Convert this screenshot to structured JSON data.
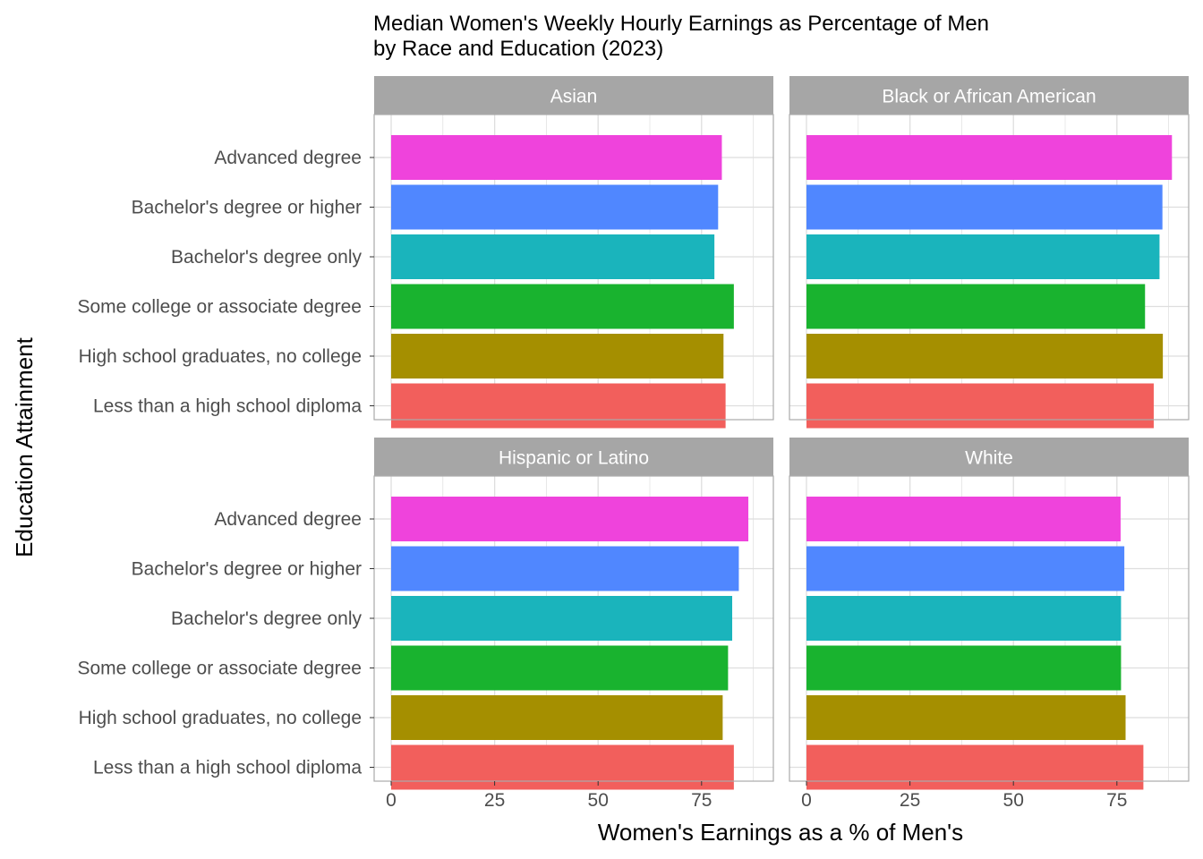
{
  "chart_data": {
    "type": "bar",
    "orientation": "horizontal",
    "title": "Median Women's Weekly Hourly Earnings as Percentage of Men",
    "subtitle": "by Race and Education (2023)",
    "xlabel": "Women's Earnings as a % of Men's",
    "ylabel": "Education Attainment",
    "xlim": [
      0,
      89
    ],
    "xticks": [
      "0",
      "25",
      "50",
      "75"
    ],
    "xtick_values": [
      0,
      25,
      50,
      75
    ],
    "grid": true,
    "categories": [
      "Advanced degree",
      "Bachelor's degree or higher",
      "Bachelor's degree only",
      "Some college or associate degree",
      "High school graduates, no college",
      "Less than a high school diploma"
    ],
    "colors": [
      "#EF43DC",
      "#5087FF",
      "#1AB4BC",
      "#19B32F",
      "#A58F00",
      "#F25F5C"
    ],
    "panels": [
      {
        "name": "Asian",
        "values": [
          79.9,
          79.0,
          78.1,
          82.8,
          80.3,
          80.8
        ]
      },
      {
        "name": "Black or African American",
        "values": [
          88.3,
          86.0,
          85.3,
          81.8,
          86.1,
          83.9
        ]
      },
      {
        "name": "Hispanic or Latino",
        "values": [
          86.3,
          84.0,
          82.4,
          81.4,
          80.1,
          82.8
        ]
      },
      {
        "name": "White",
        "values": [
          75.9,
          76.8,
          76.0,
          76.0,
          77.1,
          81.4
        ]
      }
    ]
  }
}
